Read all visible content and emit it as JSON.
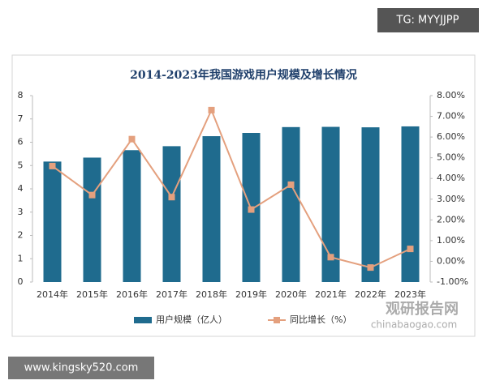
{
  "chart_data": {
    "type": "bar",
    "title": "2014-2023年我国游戏用户规模及增长情况",
    "categories": [
      "2014年",
      "2015年",
      "2016年",
      "2017年",
      "2018年",
      "2019年",
      "2020年",
      "2021年",
      "2022年",
      "2023年"
    ],
    "series": [
      {
        "name": "用户规模（亿人）",
        "color": "#1f6b8e",
        "type": "bar",
        "values": [
          5.17,
          5.34,
          5.66,
          5.83,
          6.26,
          6.4,
          6.65,
          6.66,
          6.64,
          6.68
        ]
      },
      {
        "name": "同比增长（%）",
        "color": "#e4a07e",
        "type": "line",
        "axis": "y2",
        "values": [
          4.6,
          3.2,
          5.9,
          3.1,
          7.3,
          2.5,
          3.7,
          0.2,
          -0.3,
          0.6
        ]
      }
    ],
    "ylim": [
      0,
      8
    ],
    "yticks": [
      0,
      1,
      2,
      3,
      4,
      5,
      6,
      7,
      8
    ],
    "y2lim": [
      -1,
      8
    ],
    "y2ticks": [
      {
        "value": -1,
        "label": "-1.00%"
      },
      {
        "value": 0,
        "label": "0.00%"
      },
      {
        "value": 1,
        "label": "1.00%"
      },
      {
        "value": 2,
        "label": "2.00%"
      },
      {
        "value": 3,
        "label": "3.00%"
      },
      {
        "value": 4,
        "label": "4.00%"
      },
      {
        "value": 5,
        "label": "5.00%"
      },
      {
        "value": 6,
        "label": "6.00%"
      },
      {
        "value": 7,
        "label": "7.00%"
      },
      {
        "value": 8,
        "label": "8.00%"
      }
    ],
    "grid": false,
    "legend": "bottom"
  },
  "watermarks": {
    "top": "TG: MYYJJPP",
    "bottom": "www.kingsky520.com",
    "brand": "观研报告网",
    "brand_url": "chinabaogao.com"
  }
}
